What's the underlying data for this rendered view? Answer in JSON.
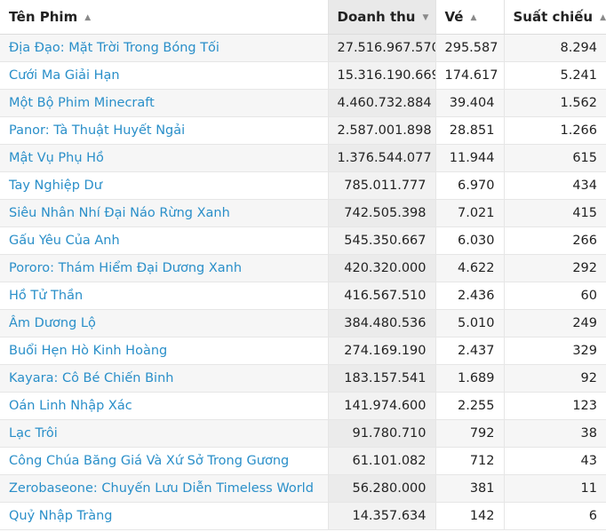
{
  "columns": {
    "title": "Tên Phim",
    "revenue": "Doanh thu",
    "tickets": "Vé",
    "showings": "Suất chiếu"
  },
  "rows": [
    {
      "title": "Địa Đạo: Mặt Trời Trong Bóng Tối",
      "revenue": "27.516.967.570",
      "tickets": "295.587",
      "showings": "8.294"
    },
    {
      "title": "Cưới Ma Giải Hạn",
      "revenue": "15.316.190.669",
      "tickets": "174.617",
      "showings": "5.241"
    },
    {
      "title": "Một Bộ Phim Minecraft",
      "revenue": "4.460.732.884",
      "tickets": "39.404",
      "showings": "1.562"
    },
    {
      "title": "Panor: Tà Thuật Huyết Ngải",
      "revenue": "2.587.001.898",
      "tickets": "28.851",
      "showings": "1.266"
    },
    {
      "title": "Mật Vụ Phụ Hồ",
      "revenue": "1.376.544.077",
      "tickets": "11.944",
      "showings": "615"
    },
    {
      "title": "Tay Nghiệp Dư",
      "revenue": "785.011.777",
      "tickets": "6.970",
      "showings": "434"
    },
    {
      "title": "Siêu Nhân Nhí Đại Náo Rừng Xanh",
      "revenue": "742.505.398",
      "tickets": "7.021",
      "showings": "415"
    },
    {
      "title": "Gấu Yêu Của Anh",
      "revenue": "545.350.667",
      "tickets": "6.030",
      "showings": "266"
    },
    {
      "title": "Pororo: Thám Hiểm Đại Dương Xanh",
      "revenue": "420.320.000",
      "tickets": "4.622",
      "showings": "292"
    },
    {
      "title": "Hồ Tử Thần",
      "revenue": "416.567.510",
      "tickets": "2.436",
      "showings": "60"
    },
    {
      "title": "Âm Dương Lộ",
      "revenue": "384.480.536",
      "tickets": "5.010",
      "showings": "249"
    },
    {
      "title": "Buổi Hẹn Hò Kinh Hoàng",
      "revenue": "274.169.190",
      "tickets": "2.437",
      "showings": "329"
    },
    {
      "title": "Kayara: Cô Bé Chiến Binh",
      "revenue": "183.157.541",
      "tickets": "1.689",
      "showings": "92"
    },
    {
      "title": "Oán Linh Nhập Xác",
      "revenue": "141.974.600",
      "tickets": "2.255",
      "showings": "123"
    },
    {
      "title": "Lạc Trôi",
      "revenue": "91.780.710",
      "tickets": "792",
      "showings": "38"
    },
    {
      "title": "Công Chúa Băng Giá Và Xứ Sở Trong Gương",
      "revenue": "61.101.082",
      "tickets": "712",
      "showings": "43"
    },
    {
      "title": "Zerobaseone: Chuyến Lưu Diễn Timeless World",
      "revenue": "56.280.000",
      "tickets": "381",
      "showings": "11"
    },
    {
      "title": "Quỷ Nhập Tràng",
      "revenue": "14.357.634",
      "tickets": "142",
      "showings": "6"
    }
  ],
  "colors": {
    "link": "#2a8fc9",
    "sorted_header": "#e9e9e9"
  }
}
